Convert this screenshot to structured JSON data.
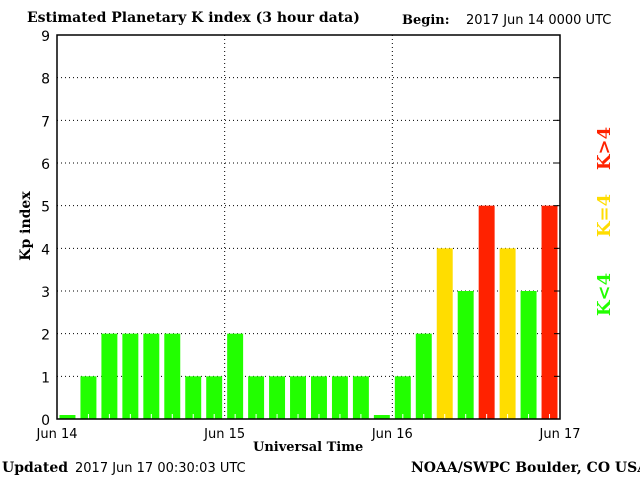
{
  "header": {
    "title": "Estimated Planetary K index (3 hour data)",
    "begin_label": "Begin:",
    "begin_value": "2017 Jun 14 0000 UTC"
  },
  "footer": {
    "updated_label": "Updated",
    "updated_value": "2017 Jun 17 00:30:03 UTC",
    "credit": "NOAA/SWPC Boulder, CO USA"
  },
  "legend": {
    "high": "K>4",
    "mid": "K=4",
    "low": "K<4"
  },
  "colors": {
    "low": "#22ff00",
    "mid": "#ffdd00",
    "high": "#ff2200"
  },
  "chart_data": {
    "type": "bar",
    "title": "Estimated Planetary K index (3 hour data)",
    "xlabel": "Universal Time",
    "ylabel": "Kp index",
    "ylim": [
      0,
      9
    ],
    "yticks": [
      "0",
      "1",
      "2",
      "3",
      "4",
      "5",
      "6",
      "7",
      "8",
      "9"
    ],
    "xticks": [
      "Jun 14",
      "Jun 15",
      "Jun 16",
      "Jun 17"
    ],
    "bar_interval_hours": 3,
    "values": [
      0,
      1,
      2,
      2,
      2,
      2,
      1,
      1,
      2,
      1,
      1,
      1,
      1,
      1,
      1,
      0,
      1,
      2,
      4,
      3,
      5,
      4,
      3,
      5
    ]
  }
}
